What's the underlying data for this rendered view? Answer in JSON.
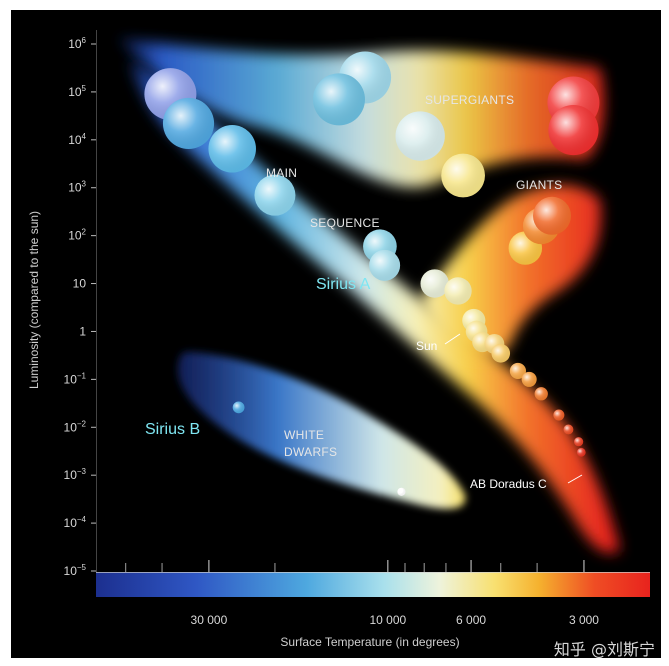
{
  "chart_data": {
    "type": "scatter",
    "title": "",
    "xlabel": "Surface Temperature (in degrees)",
    "ylabel": "Luminosity (compared to the sun)",
    "x_scale": "log-reversed",
    "y_scale": "log",
    "x_ticks": [
      {
        "value": 30000,
        "label": "30 000"
      },
      {
        "value": 10000,
        "label": "10 000"
      },
      {
        "value": 6000,
        "label": "6 000"
      },
      {
        "value": 3000,
        "label": "3 000"
      }
    ],
    "y_ticks": [
      {
        "value": 1000000,
        "base": "10",
        "exp": "6"
      },
      {
        "value": 100000,
        "base": "10",
        "exp": "5"
      },
      {
        "value": 10000,
        "base": "10",
        "exp": "4"
      },
      {
        "value": 1000,
        "base": "10",
        "exp": "3"
      },
      {
        "value": 100,
        "base": "10",
        "exp": "2"
      },
      {
        "value": 10,
        "base": "10",
        "exp": ""
      },
      {
        "value": 1,
        "base": "1",
        "exp": ""
      },
      {
        "value": 0.1,
        "base": "10",
        "exp": "−1"
      },
      {
        "value": 0.01,
        "base": "10",
        "exp": "−2"
      },
      {
        "value": 0.001,
        "base": "10",
        "exp": "−3"
      },
      {
        "value": 0.0001,
        "base": "10",
        "exp": "−4"
      },
      {
        "value": 1e-05,
        "base": "10",
        "exp": "−5"
      }
    ],
    "regions": [
      {
        "name": "MAIN"
      },
      {
        "name": "SEQUENCE"
      },
      {
        "name": "SUPERGIANTS"
      },
      {
        "name": "GIANTS"
      },
      {
        "name": "WHITE"
      },
      {
        "name": "DWARFS"
      }
    ],
    "named_stars": [
      {
        "name": "Sirius A",
        "temp": 9900,
        "lum": 25
      },
      {
        "name": "Sirius B",
        "temp": 25000,
        "lum": 0.026
      },
      {
        "name": "Sun",
        "temp": 5800,
        "lum": 1
      },
      {
        "name": "AB Doradus C",
        "temp": 3000,
        "lum": 0.0016
      }
    ],
    "stars": [
      {
        "temp": 38000,
        "lum": 90000,
        "color": "#8f9fe8"
      },
      {
        "temp": 34000,
        "lum": 22000,
        "color": "#4fa7e0"
      },
      {
        "temp": 26000,
        "lum": 6500,
        "color": "#5cbbe8"
      },
      {
        "temp": 20000,
        "lum": 700,
        "color": "#8cd4ec"
      },
      {
        "temp": 10500,
        "lum": 60,
        "color": "#8dd3e6"
      },
      {
        "temp": 10200,
        "lum": 24,
        "color": "#a6dcea"
      },
      {
        "temp": 7500,
        "lum": 10,
        "color": "#e6ecd6"
      },
      {
        "temp": 6500,
        "lum": 7,
        "color": "#f3ecb0"
      },
      {
        "temp": 5900,
        "lum": 1.7,
        "color": "#f5eaa0"
      },
      {
        "temp": 5800,
        "lum": 1.0,
        "color": "#f6e28c"
      },
      {
        "temp": 5600,
        "lum": 0.6,
        "color": "#f6dc82"
      },
      {
        "temp": 5200,
        "lum": 0.55,
        "color": "#f6d37a"
      },
      {
        "temp": 5000,
        "lum": 0.35,
        "color": "#f6c964"
      },
      {
        "temp": 4500,
        "lum": 0.15,
        "color": "#f5a544"
      },
      {
        "temp": 4200,
        "lum": 0.1,
        "color": "#f39a3a"
      },
      {
        "temp": 3900,
        "lum": 0.05,
        "color": "#f07a2c"
      },
      {
        "temp": 3500,
        "lum": 0.018,
        "color": "#ec5b24"
      },
      {
        "temp": 3300,
        "lum": 0.009,
        "color": "#e84a22"
      },
      {
        "temp": 3100,
        "lum": 0.005,
        "color": "#e63c20"
      },
      {
        "temp": 3050,
        "lum": 0.003,
        "color": "#e3301e"
      },
      {
        "temp": 11500,
        "lum": 200000,
        "color": "#9fd8ea"
      },
      {
        "temp": 13500,
        "lum": 70000,
        "color": "#6cbfdf"
      },
      {
        "temp": 8200,
        "lum": 12000,
        "color": "#d8ecec"
      },
      {
        "temp": 6300,
        "lum": 1800,
        "color": "#f7e68a"
      },
      {
        "temp": 3200,
        "lum": 60000,
        "color": "#f23a3a"
      },
      {
        "temp": 3200,
        "lum": 16000,
        "color": "#f02e2e"
      },
      {
        "temp": 4300,
        "lum": 55,
        "color": "#f9c441"
      },
      {
        "temp": 3900,
        "lum": 160,
        "color": "#f3892e"
      },
      {
        "temp": 3650,
        "lum": 260,
        "color": "#f16a2a"
      },
      {
        "temp": 25000,
        "lum": 0.026,
        "color": "#4aa6e0"
      },
      {
        "temp": 9200,
        "lum": 0.00045,
        "color": "#ffffff"
      }
    ]
  },
  "watermark": "知乎 @刘斯宁"
}
